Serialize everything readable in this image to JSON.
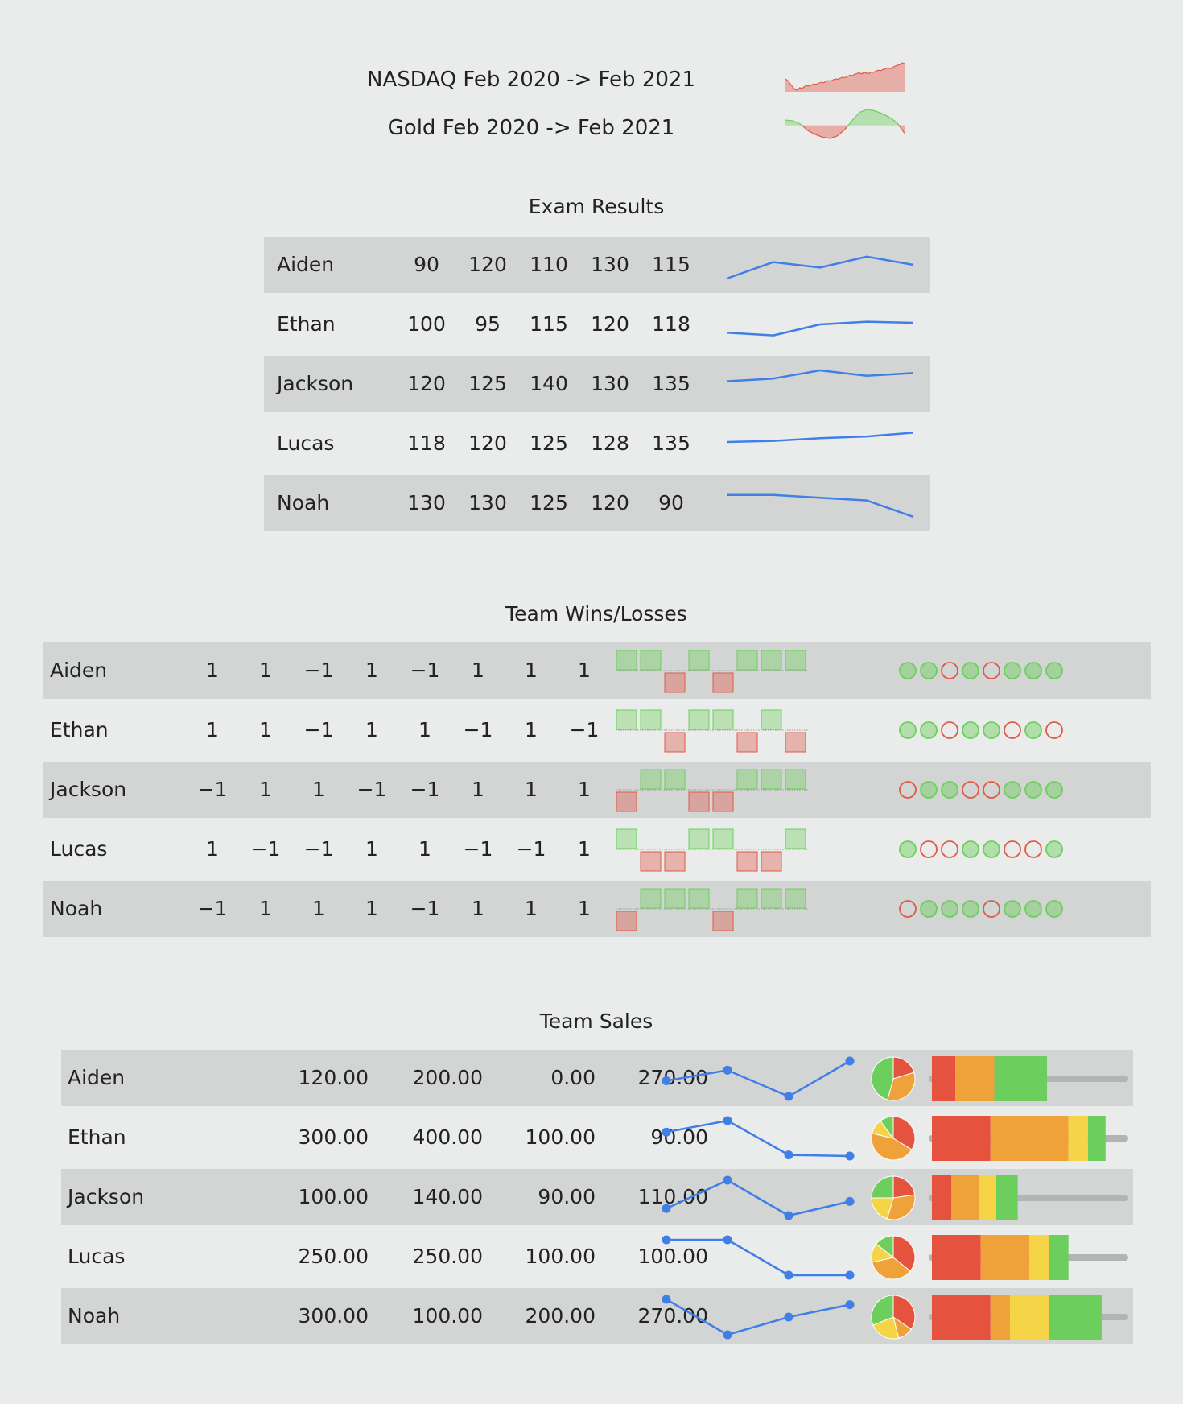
{
  "sparklines": [
    {
      "label": "NASDAQ Feb 2020 -> Feb 2021",
      "values": [
        9700,
        9300,
        8500,
        7800,
        7200,
        7000,
        7600,
        7400,
        7900,
        8100,
        8000,
        8300,
        8500,
        8400,
        8700,
        8900,
        8800,
        9100,
        9300,
        9200,
        9500,
        9700,
        9600,
        9900,
        10100,
        10000,
        10300,
        10600,
        10500,
        10800,
        11000,
        11200,
        10900,
        11300,
        11100,
        11000,
        11400,
        11300,
        11600,
        11800,
        11700,
        12000,
        12100,
        12400,
        12200,
        12500,
        12800,
        13000,
        13200,
        13600,
        13400
      ],
      "baseline": 9150,
      "color": "#e05a47"
    },
    {
      "label": "Gold Feb 2020 -> Feb 2021",
      "values": [
        1720,
        1715,
        1690,
        1640,
        1610,
        1590,
        1580,
        1600,
        1650,
        1720,
        1780,
        1800,
        1790,
        1770,
        1740,
        1700,
        1620
      ],
      "baseline": 1680,
      "color_up": "#6ccf5d",
      "color_down": "#e05a47"
    }
  ],
  "exam": {
    "title": "Exam Results",
    "rows": [
      {
        "name": "Aiden",
        "scores": [
          90,
          120,
          110,
          130,
          115
        ]
      },
      {
        "name": "Ethan",
        "scores": [
          100,
          95,
          115,
          120,
          118
        ]
      },
      {
        "name": "Jackson",
        "scores": [
          120,
          125,
          140,
          130,
          135
        ]
      },
      {
        "name": "Lucas",
        "scores": [
          118,
          120,
          125,
          128,
          135
        ]
      },
      {
        "name": "Noah",
        "scores": [
          130,
          130,
          125,
          120,
          90
        ]
      }
    ],
    "line_color": "#3f7fe6"
  },
  "wins": {
    "title": "Team Wins/Losses",
    "rows": [
      {
        "name": "Aiden",
        "results": [
          "1",
          "1",
          "−1",
          "1",
          "−1",
          "1",
          "1",
          "1"
        ]
      },
      {
        "name": "Ethan",
        "results": [
          "1",
          "1",
          "−1",
          "1",
          "1",
          "−1",
          "1",
          "−1"
        ]
      },
      {
        "name": "Jackson",
        "results": [
          "−1",
          "1",
          "1",
          "−1",
          "−1",
          "1",
          "1",
          "1"
        ]
      },
      {
        "name": "Lucas",
        "results": [
          "1",
          "−1",
          "−1",
          "1",
          "1",
          "−1",
          "−1",
          "1"
        ]
      },
      {
        "name": "Noah",
        "results": [
          "−1",
          "1",
          "1",
          "1",
          "−1",
          "1",
          "1",
          "1"
        ]
      }
    ],
    "win_color": "#6ccf5d",
    "loss_color": "#e05a47"
  },
  "sales": {
    "title": "Team Sales",
    "rows": [
      {
        "name": "Aiden",
        "values": [
          "120.00",
          "200.00",
          "0.00",
          "270.00"
        ],
        "nums": [
          120,
          200,
          0,
          270
        ]
      },
      {
        "name": "Ethan",
        "values": [
          "300.00",
          "400.00",
          "100.00",
          "90.00"
        ],
        "nums": [
          300,
          400,
          100,
          90
        ]
      },
      {
        "name": "Jackson",
        "values": [
          "100.00",
          "140.00",
          "90.00",
          "110.00"
        ],
        "nums": [
          100,
          140,
          90,
          110
        ]
      },
      {
        "name": "Lucas",
        "values": [
          "250.00",
          "250.00",
          "100.00",
          "100.00"
        ],
        "nums": [
          250,
          250,
          100,
          100
        ]
      },
      {
        "name": "Noah",
        "values": [
          "300.00",
          "100.00",
          "200.00",
          "270.00"
        ],
        "nums": [
          300,
          100,
          200,
          270
        ]
      }
    ],
    "segment_colors": [
      "#e5533f",
      "#f0a23a",
      "#f6d448",
      "#6ccf5d"
    ],
    "line_color": "#3f7fe6",
    "track_color": "#b3b4b4",
    "bar_max": 990
  }
}
